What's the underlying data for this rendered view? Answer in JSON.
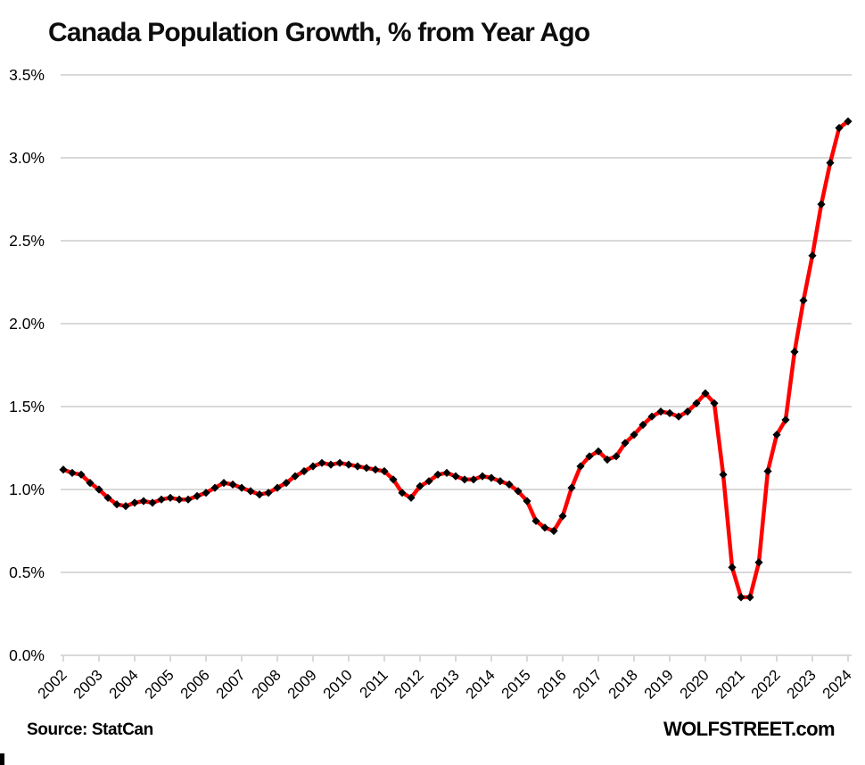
{
  "page": {
    "footer": {
      "source": "Source: StatCan",
      "brand": "WOLFSTREET.com"
    }
  },
  "chart_data": {
    "type": "line",
    "title": "Canada Population Growth, % from Year Ago",
    "xlabel": "",
    "ylabel": "",
    "grid": true,
    "grid_color": "#d9d9d9",
    "background_color": "#ffffff",
    "text_color": "#000000",
    "x_axis": {
      "start": "2002-Q1",
      "end": "2024-Q1",
      "frequency": "quarterly",
      "tick_labels": [
        "2002",
        "2003",
        "2004",
        "2005",
        "2006",
        "2007",
        "2008",
        "2009",
        "2010",
        "2011",
        "2012",
        "2013",
        "2014",
        "2015",
        "2016",
        "2017",
        "2018",
        "2019",
        "2020",
        "2021",
        "2022",
        "2023",
        "2024"
      ],
      "tick_label_rotation_deg": -45
    },
    "y_axis": {
      "min": 0.0,
      "max": 3.5,
      "ticks": [
        0.0,
        0.5,
        1.0,
        1.5,
        2.0,
        2.5,
        3.0,
        3.5
      ],
      "tick_labels": [
        "0.0%",
        "0.5%",
        "1.0%",
        "1.5%",
        "2.0%",
        "2.5%",
        "3.0%",
        "3.5%"
      ]
    },
    "series": [
      {
        "name": "Canada population growth, % from year ago (quarterly)",
        "color": "#ff0000",
        "marker": "diamond",
        "marker_color": "#000000",
        "values": [
          1.12,
          1.1,
          1.09,
          1.04,
          1.0,
          0.95,
          0.91,
          0.9,
          0.92,
          0.93,
          0.92,
          0.94,
          0.95,
          0.94,
          0.94,
          0.96,
          0.98,
          1.01,
          1.04,
          1.03,
          1.01,
          0.99,
          0.97,
          0.98,
          1.01,
          1.04,
          1.08,
          1.11,
          1.14,
          1.16,
          1.15,
          1.16,
          1.15,
          1.14,
          1.13,
          1.12,
          1.11,
          1.06,
          0.98,
          0.95,
          1.02,
          1.05,
          1.09,
          1.1,
          1.08,
          1.06,
          1.06,
          1.08,
          1.07,
          1.05,
          1.03,
          0.99,
          0.93,
          0.81,
          0.77,
          0.75,
          0.84,
          1.01,
          1.14,
          1.2,
          1.23,
          1.18,
          1.2,
          1.28,
          1.33,
          1.39,
          1.44,
          1.47,
          1.46,
          1.44,
          1.47,
          1.52,
          1.58,
          1.52,
          1.09,
          0.53,
          0.35,
          0.35,
          0.56,
          1.11,
          1.33,
          1.42,
          1.83,
          2.14,
          2.41,
          2.72,
          2.97,
          3.18,
          3.22
        ]
      }
    ]
  }
}
